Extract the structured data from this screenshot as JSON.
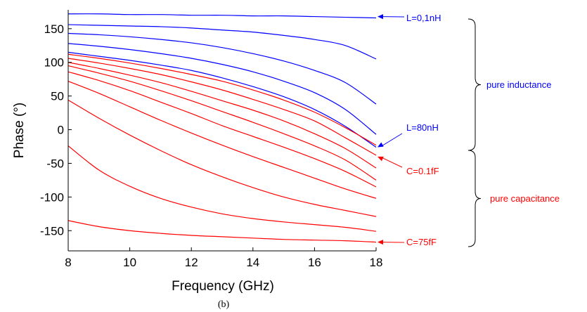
{
  "chart_data": {
    "type": "line",
    "title": "",
    "xlabel": "Frequency (GHz)",
    "ylabel": "Phase (°)",
    "caption": "(b)",
    "xlim": [
      8,
      18
    ],
    "ylim": [
      -180,
      178
    ],
    "xticks": [
      8,
      10,
      12,
      14,
      16,
      18
    ],
    "yticks": [
      150,
      100,
      50,
      0,
      -50,
      -100,
      -150
    ],
    "grid": false,
    "x": [
      8,
      9,
      10,
      11,
      12,
      13,
      14,
      15,
      16,
      17,
      18
    ],
    "series": [
      {
        "color": "#0000ff",
        "values": [
          172,
          172,
          171,
          171,
          170,
          170,
          169,
          169,
          168,
          167,
          166
        ]
      },
      {
        "color": "#0000ff",
        "values": [
          156,
          155,
          154,
          153,
          151,
          148,
          145,
          140,
          134,
          125,
          105
        ]
      },
      {
        "color": "#0000ff",
        "values": [
          143,
          141,
          138,
          134,
          129,
          122,
          113,
          102,
          88,
          70,
          38
        ]
      },
      {
        "color": "#0000ff",
        "values": [
          128,
          124,
          119,
          113,
          106,
          97,
          86,
          72,
          55,
          30,
          -7
        ]
      },
      {
        "color": "#0000ff",
        "values": [
          115,
          109,
          103,
          96,
          88,
          77,
          64,
          49,
          30,
          5,
          -26
        ]
      },
      {
        "color": "#ff0000",
        "values": [
          112,
          106,
          99,
          91,
          82,
          72,
          59,
          44,
          26,
          3,
          -23
        ]
      },
      {
        "color": "#ff0000",
        "values": [
          106,
          99,
          91,
          82,
          71,
          59,
          45,
          30,
          13,
          -12,
          -38
        ]
      },
      {
        "color": "#ff0000",
        "values": [
          100,
          91,
          81,
          70,
          57,
          43,
          29,
          13,
          -6,
          -28,
          -57
        ]
      },
      {
        "color": "#ff0000",
        "values": [
          95,
          84,
          72,
          58,
          43,
          27,
          11,
          -6,
          -24,
          -45,
          -75
        ]
      },
      {
        "color": "#ff0000",
        "values": [
          86,
          73,
          58,
          41,
          24,
          6,
          -10,
          -26,
          -43,
          -62,
          -85
        ]
      },
      {
        "color": "#ff0000",
        "values": [
          72,
          54,
          34,
          14,
          -5,
          -23,
          -40,
          -56,
          -72,
          -88,
          -102
        ]
      },
      {
        "color": "#ff0000",
        "values": [
          44,
          17,
          -8,
          -31,
          -52,
          -70,
          -86,
          -100,
          -111,
          -120,
          -129
        ]
      },
      {
        "color": "#ff0000",
        "values": [
          -24,
          -60,
          -84,
          -102,
          -115,
          -125,
          -132,
          -137,
          -141,
          -145,
          -151
        ]
      },
      {
        "color": "#ff0000",
        "values": [
          -135,
          -144,
          -150,
          -154,
          -157,
          -159,
          -161,
          -163,
          -164,
          -165,
          -167
        ]
      }
    ],
    "annotations": [
      {
        "text": "L=0,1nH",
        "color": "#0000ff",
        "x": 18,
        "y": 168
      },
      {
        "text": "L=80nH",
        "color": "#0000ff",
        "x": 18,
        "y": -26
      },
      {
        "text": "C=0.1fF",
        "color": "#ff0000",
        "x": 18,
        "y": -40
      },
      {
        "text": "C=75fF",
        "color": "#ff0000",
        "x": 18,
        "y": -167
      }
    ],
    "brace_labels": [
      {
        "text": "pure inductance",
        "color": "#0000ff"
      },
      {
        "text": "pure capacitance",
        "color": "#ff0000"
      }
    ]
  }
}
